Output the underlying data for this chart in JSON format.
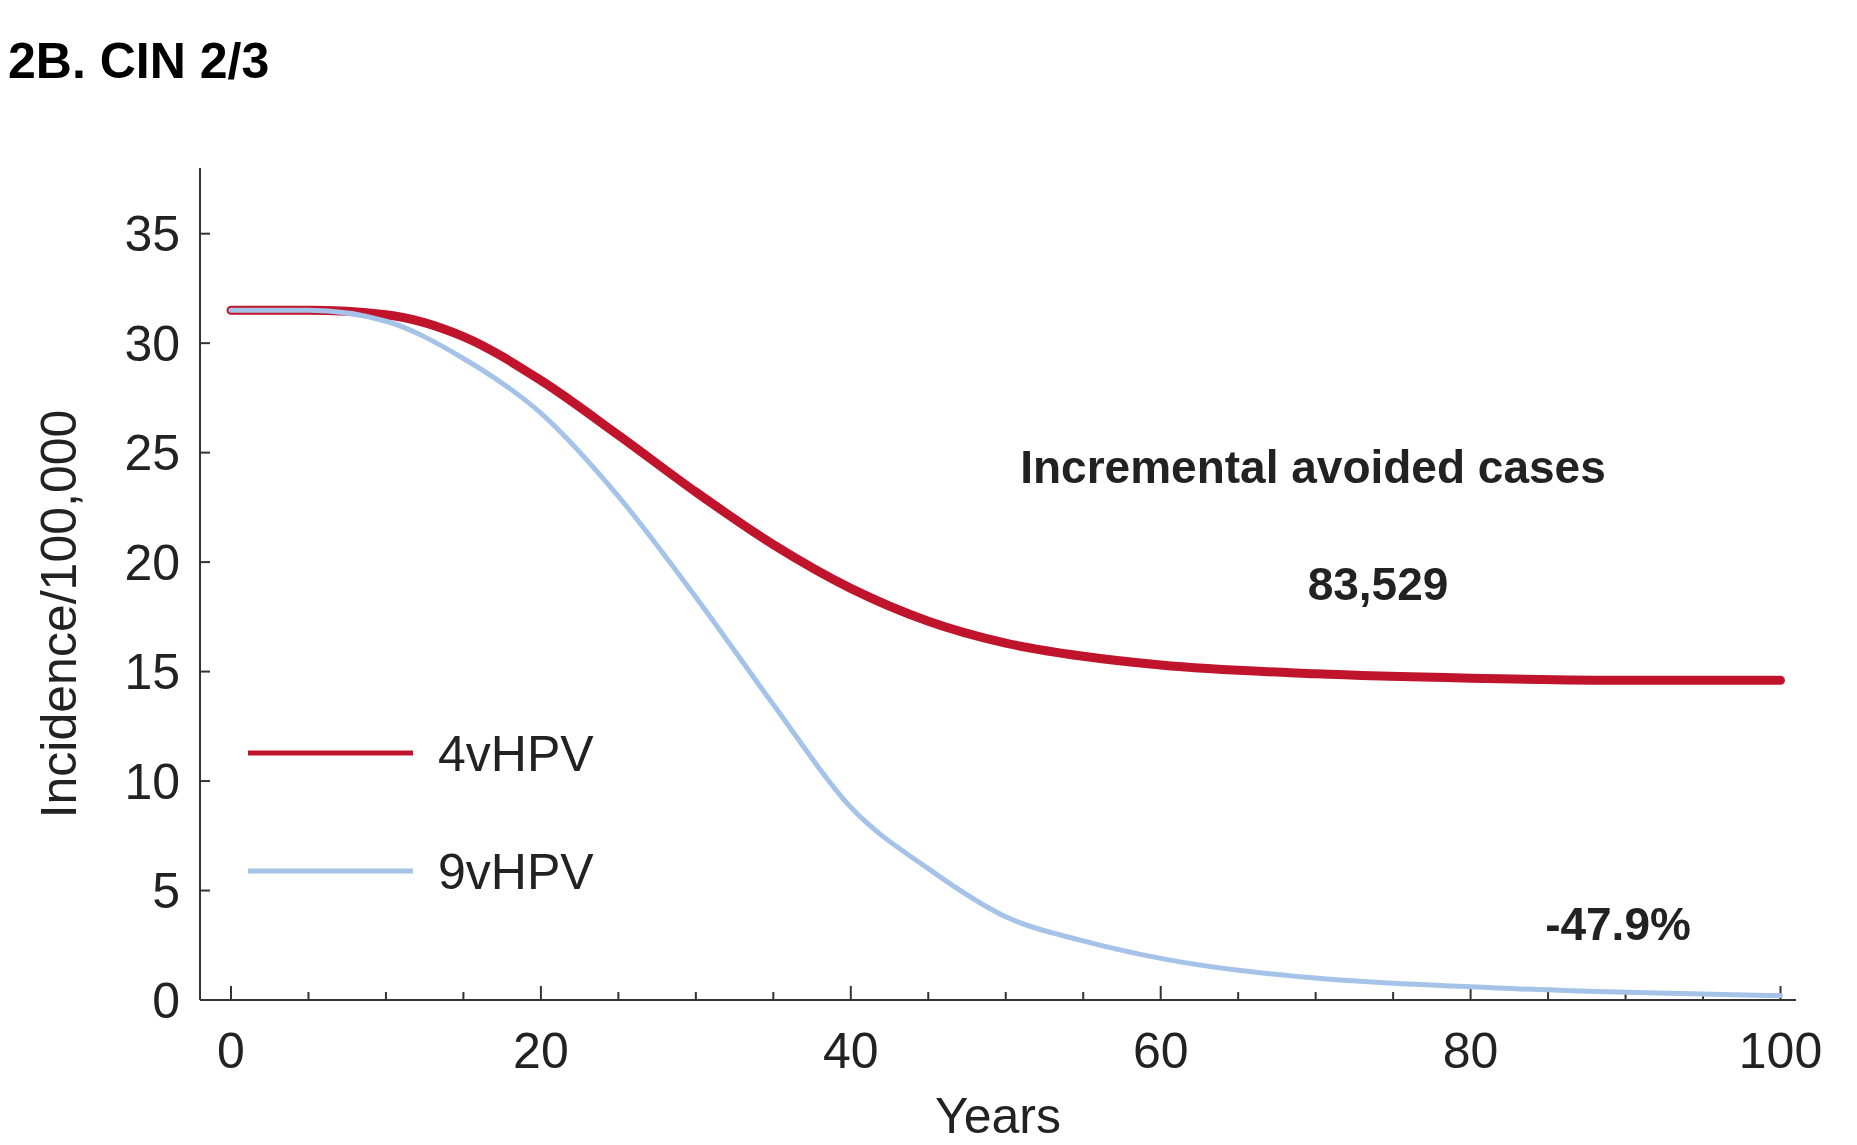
{
  "chart_data": {
    "type": "line",
    "title": "2B. CIN 2/3",
    "xlabel": "Years",
    "ylabel": "Incidence/100,000",
    "annotations": [
      "Incremental avoided cases",
      "83,529",
      "-47.9%"
    ],
    "x": [
      0,
      5,
      10,
      15,
      20,
      25,
      30,
      35,
      40,
      45,
      50,
      55,
      60,
      70,
      80,
      90,
      100
    ],
    "series": [
      {
        "name": "4vHPV",
        "color": "#c0142c",
        "values": [
          31.5,
          31.5,
          31.3,
          30.3,
          28.3,
          25.8,
          23.2,
          20.8,
          18.8,
          17.3,
          16.3,
          15.7,
          15.3,
          14.9,
          14.7,
          14.6,
          14.6
        ]
      },
      {
        "name": "9vHPV",
        "color": "#a5c3e8",
        "values": [
          31.5,
          31.5,
          31,
          29.3,
          26.8,
          23,
          18.4,
          13.5,
          8.8,
          6,
          3.8,
          2.7,
          1.9,
          1,
          0.6,
          0.35,
          0.2
        ]
      }
    ],
    "xlim": [
      -2,
      101
    ],
    "ylim": [
      0,
      38
    ],
    "xticks": [
      0,
      {
        "value": 5,
        "label": null
      },
      {
        "value": 10,
        "label": null
      },
      {
        "value": 15,
        "label": null
      },
      20,
      {
        "value": 25,
        "label": null
      },
      {
        "value": 30,
        "label": null
      },
      {
        "value": 35,
        "label": null
      },
      40,
      {
        "value": 45,
        "label": null
      },
      {
        "value": 50,
        "label": null
      },
      {
        "value": 55,
        "label": null
      },
      60,
      {
        "value": 65,
        "label": null
      },
      {
        "value": 70,
        "label": null
      },
      {
        "value": 75,
        "label": null
      },
      80,
      {
        "value": 85,
        "label": null
      },
      {
        "value": 90,
        "label": null
      },
      {
        "value": 95,
        "label": null
      },
      100
    ],
    "yticks": [
      0,
      5,
      10,
      15,
      20,
      25,
      30,
      35
    ],
    "grid": false,
    "legend": "bottom left",
    "marker": "none",
    "line_style": "solid"
  }
}
